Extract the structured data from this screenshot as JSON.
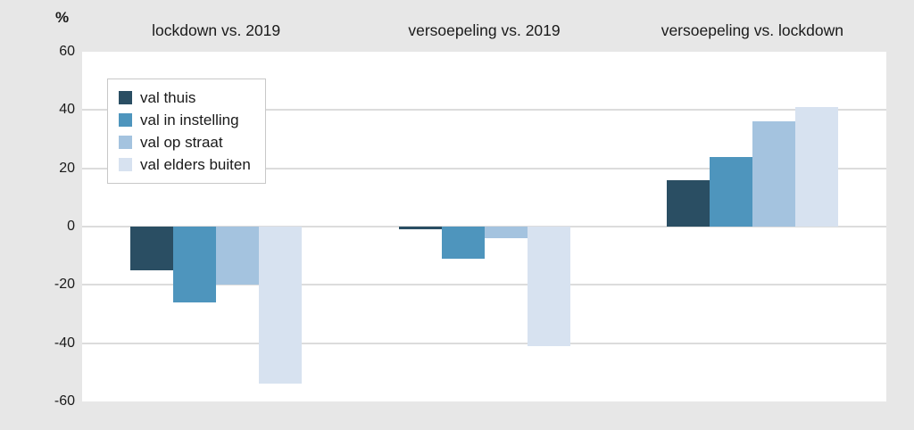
{
  "page": {
    "background_color": "#E7E7E7",
    "plot_background_color": "#FFFFFF",
    "gridline_color": "#DCDCDC",
    "text_color": "#1A1A1A"
  },
  "chart_data": {
    "type": "bar",
    "title": "",
    "ylabel": "%",
    "xlabel": "",
    "ylim": [
      -60,
      60
    ],
    "yticks": [
      60,
      40,
      20,
      0,
      -20,
      -40,
      -60
    ],
    "grid": true,
    "legend_position": "upper-left",
    "groups": [
      "lockdown vs. 2019",
      "versoepeling vs. 2019",
      "versoepeling vs. lockdown"
    ],
    "series": [
      {
        "name": "val thuis",
        "color": "#2A4E63",
        "values": [
          -15,
          -1,
          16
        ]
      },
      {
        "name": "val in instelling",
        "color": "#4E95BD",
        "values": [
          -26,
          -11,
          24
        ]
      },
      {
        "name": "val op straat",
        "color": "#A4C3DF",
        "values": [
          -20,
          -4,
          36
        ]
      },
      {
        "name": "val elders buiten",
        "color": "#D7E2F0",
        "values": [
          -54,
          -41,
          41
        ]
      }
    ]
  }
}
